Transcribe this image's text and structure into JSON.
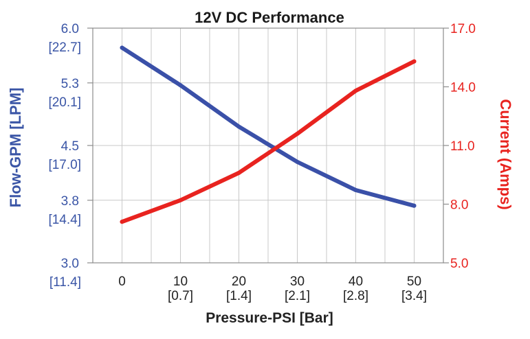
{
  "chart_data": {
    "type": "line",
    "title": "12V DC Performance",
    "xlabel": "Pressure-PSI [Bar]",
    "ylabel_left": "Flow-GPM [LPM]",
    "ylabel_right": "Current (Amps)",
    "x": [
      0,
      10,
      20,
      30,
      40,
      50
    ],
    "x_tick_labels": [
      "0",
      "10",
      "20",
      "30",
      "40",
      "50"
    ],
    "x_tick_sublabels": [
      "",
      "[0.7]",
      "[1.4]",
      "[2.1]",
      "[2.8]",
      "[3.4]"
    ],
    "xlim": [
      -5,
      55
    ],
    "ylim_left": [
      3.0,
      6.0
    ],
    "ylim_right": [
      5.0,
      17.0
    ],
    "y_left_ticks": [
      3.0,
      3.8,
      4.5,
      5.3,
      6.0
    ],
    "y_left_tick_labels": [
      "3.0",
      "3.8",
      "4.5",
      "5.3",
      "6.0"
    ],
    "y_left_tick_sublabels": [
      "[11.4]",
      "[14.4]",
      "[17.0]",
      "[20.1]",
      "[22.7]"
    ],
    "y_right_ticks": [
      5.0,
      8.0,
      11.0,
      14.0,
      17.0
    ],
    "y_right_tick_labels": [
      "5.0",
      "8.0",
      "11.0",
      "14.0",
      "17.0"
    ],
    "grid": true,
    "series": [
      {
        "name": "Flow-GPM [LPM]",
        "axis": "left",
        "color": "#3a50a8",
        "values": [
          5.75,
          5.27,
          4.74,
          4.29,
          3.93,
          3.73
        ]
      },
      {
        "name": "Current (Amps)",
        "axis": "right",
        "color": "#e8231f",
        "values": [
          7.1,
          8.2,
          9.6,
          11.6,
          13.8,
          15.3
        ]
      }
    ],
    "colors": {
      "left_axis": "#3a55a6",
      "right_axis": "#e8231f",
      "grid": "#c8c8c8",
      "frame": "#8c8c8c"
    }
  }
}
